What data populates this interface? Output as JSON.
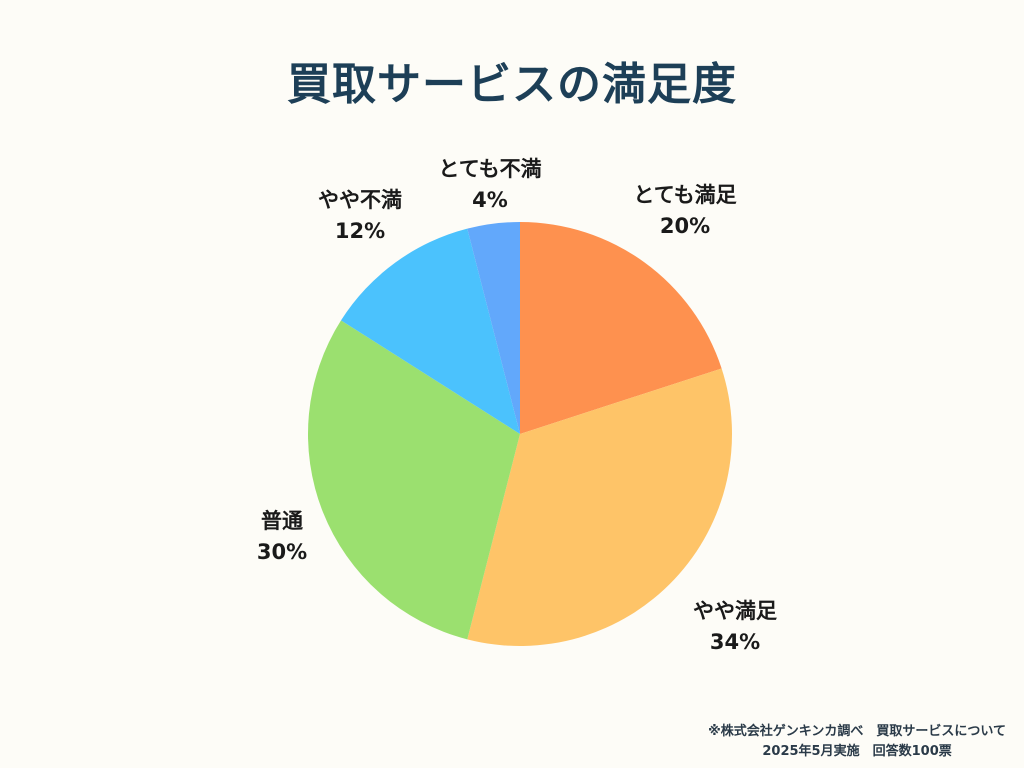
{
  "title": "買取サービスの満足度",
  "chart_data": {
    "type": "pie",
    "title": "買取サービスの満足度",
    "categories": [
      "とても満足",
      "やや満足",
      "普通",
      "やや不満",
      "とても不満"
    ],
    "values": [
      20,
      34,
      30,
      12,
      4
    ],
    "unit": "%",
    "colors": [
      "#fe914f",
      "#fec468",
      "#9be06f",
      "#4bc2fd",
      "#62a8fb"
    ],
    "start_angle": "12 o'clock, clockwise",
    "legend": "none (direct labels)"
  },
  "labels": [
    {
      "name": "とても満足",
      "pct": "20%"
    },
    {
      "name": "やや満足",
      "pct": "34%"
    },
    {
      "name": "普通",
      "pct": "30%"
    },
    {
      "name": "やや不満",
      "pct": "12%"
    },
    {
      "name": "とても不満",
      "pct": "4%"
    }
  ],
  "footnote": {
    "line1": "※株式会社ゲンキンカ調べ　買取サービスについて",
    "line2": "2025年5月実施　回答数100票"
  }
}
